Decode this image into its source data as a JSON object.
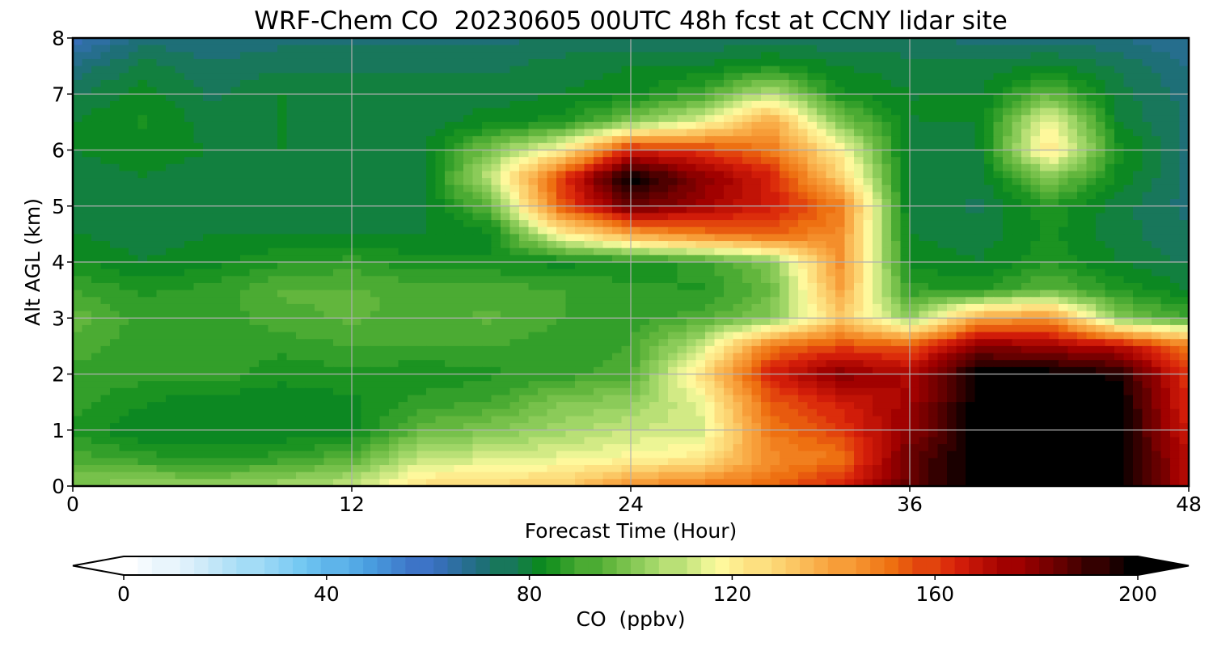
{
  "chart_data": {
    "type": "heatmap",
    "title": "WRF-Chem CO  20230605 00UTC 48h fcst at CCNY lidar site",
    "xlabel": "Forecast Time (Hour)",
    "ylabel": "Alt AGL (km)",
    "xlim": [
      0,
      48
    ],
    "ylim": [
      0,
      8
    ],
    "x_ticks": [
      "0",
      "12",
      "24",
      "36",
      "48"
    ],
    "y_ticks": [
      "0",
      "1",
      "2",
      "3",
      "4",
      "5",
      "6",
      "7",
      "8"
    ],
    "grid": true,
    "colorbar": {
      "label": "CO  (ppbv)",
      "range": [
        0,
        200
      ],
      "ticks": [
        "0",
        "40",
        "80",
        "120",
        "160",
        "200"
      ],
      "extend": "both",
      "colors": [
        "#ffffff",
        "#d8eefa",
        "#a4dcf6",
        "#6fc6f2",
        "#4a9fe0",
        "#3b6fc4",
        "#1f6e7c",
        "#0a8a1a",
        "#5db43a",
        "#a5d86a",
        "#fefca0",
        "#fcd270",
        "#f8a23c",
        "#ee6e10",
        "#d8200a",
        "#a00000",
        "#5a0000",
        "#000000"
      ]
    },
    "x_hours": [
      0,
      3,
      6,
      9,
      12,
      15,
      18,
      21,
      24,
      27,
      30,
      33,
      36,
      39,
      42,
      45,
      48
    ],
    "altitudes_km": [
      0,
      0.5,
      1,
      1.5,
      2,
      2.5,
      3,
      3.5,
      4,
      4.5,
      5,
      5.5,
      6,
      6.5,
      7,
      7.5,
      8
    ],
    "co_ppbv": [
      [
        100,
        103,
        102,
        106,
        110,
        125,
        128,
        130,
        145,
        150,
        152,
        165,
        185,
        200,
        200,
        200,
        170
      ],
      [
        92,
        88,
        86,
        88,
        93,
        110,
        112,
        115,
        118,
        122,
        145,
        150,
        185,
        200,
        200,
        200,
        170
      ],
      [
        86,
        80,
        80,
        80,
        82,
        95,
        100,
        105,
        110,
        112,
        150,
        160,
        178,
        200,
        200,
        200,
        165
      ],
      [
        88,
        84,
        80,
        82,
        82,
        88,
        90,
        100,
        102,
        115,
        155,
        165,
        175,
        200,
        200,
        200,
        162
      ],
      [
        88,
        88,
        90,
        84,
        86,
        84,
        86,
        88,
        92,
        125,
        165,
        180,
        172,
        200,
        200,
        195,
        160
      ],
      [
        92,
        88,
        88,
        88,
        90,
        90,
        90,
        88,
        90,
        110,
        150,
        158,
        155,
        180,
        175,
        170,
        150
      ],
      [
        96,
        88,
        88,
        92,
        94,
        92,
        94,
        90,
        88,
        92,
        100,
        130,
        102,
        140,
        145,
        100,
        90
      ],
      [
        90,
        86,
        88,
        94,
        94,
        92,
        92,
        90,
        88,
        86,
        96,
        140,
        88,
        86,
        95,
        86,
        80
      ],
      [
        84,
        80,
        82,
        86,
        88,
        84,
        84,
        82,
        84,
        88,
        100,
        145,
        82,
        80,
        86,
        80,
        76
      ],
      [
        80,
        78,
        80,
        80,
        80,
        80,
        82,
        120,
        140,
        150,
        155,
        145,
        80,
        78,
        84,
        78,
        74
      ],
      [
        78,
        78,
        78,
        78,
        78,
        78,
        95,
        155,
        185,
        175,
        165,
        150,
        78,
        76,
        86,
        78,
        72
      ],
      [
        78,
        80,
        78,
        78,
        78,
        78,
        110,
        160,
        200,
        180,
        165,
        130,
        78,
        78,
        100,
        82,
        72
      ],
      [
        80,
        82,
        80,
        80,
        78,
        78,
        100,
        120,
        165,
        160,
        150,
        120,
        78,
        80,
        125,
        85,
        72
      ],
      [
        80,
        84,
        78,
        80,
        78,
        78,
        82,
        85,
        100,
        115,
        140,
        100,
        80,
        80,
        118,
        80,
        72
      ],
      [
        76,
        82,
        76,
        80,
        78,
        78,
        78,
        80,
        82,
        90,
        110,
        84,
        80,
        80,
        95,
        78,
        72
      ],
      [
        70,
        78,
        74,
        76,
        76,
        76,
        76,
        78,
        80,
        80,
        84,
        80,
        78,
        78,
        80,
        76,
        70
      ],
      [
        60,
        72,
        70,
        72,
        72,
        72,
        72,
        74,
        74,
        74,
        74,
        74,
        74,
        72,
        72,
        70,
        66
      ]
    ]
  }
}
